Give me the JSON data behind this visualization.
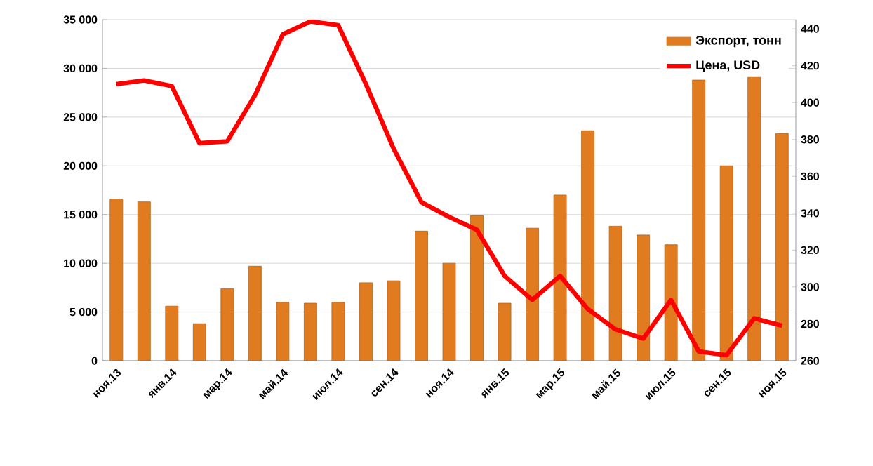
{
  "chart_data": {
    "type": "bar",
    "categories": [
      "ноя.13",
      null,
      "янв.14",
      null,
      "мар.14",
      null,
      "май.14",
      null,
      "июл.14",
      null,
      "сен.14",
      null,
      "ноя.14",
      null,
      "янв.15",
      null,
      "мар.15",
      null,
      "май.15",
      null,
      "июл.15",
      null,
      "сен.15",
      null,
      "ноя.15"
    ],
    "series": [
      {
        "name": "Экспорт, тонн",
        "color": "#e07b20",
        "values": [
          16600,
          16300,
          5600,
          3800,
          7400,
          9700,
          6000,
          5900,
          6000,
          8000,
          8200,
          13300,
          10000,
          14900,
          5900,
          13600,
          17000,
          23600,
          13800,
          12900,
          11900,
          28800,
          20000,
          29600,
          23300
        ]
      },
      {
        "name": "Цена, USD",
        "type": "line",
        "axis": "y2",
        "color": "#ff0000",
        "values": [
          410,
          412,
          409,
          378,
          379,
          404,
          437,
          444,
          442,
          410,
          375,
          346,
          338,
          331,
          306,
          293,
          306,
          288,
          277,
          272,
          293,
          265,
          263,
          283,
          279
        ]
      }
    ],
    "ylim": [
      0,
      35000
    ],
    "yticks": [
      {
        "value": 0,
        "label": "0"
      },
      {
        "value": 5000,
        "label": "5 000"
      },
      {
        "value": 10000,
        "label": "10 000"
      },
      {
        "value": 15000,
        "label": "15 000"
      },
      {
        "value": 20000,
        "label": "20 000"
      },
      {
        "value": 25000,
        "label": "25 000"
      },
      {
        "value": 30000,
        "label": "30 000"
      },
      {
        "value": 35000,
        "label": "35 000"
      }
    ],
    "y2lim": [
      260,
      445
    ],
    "y2ticks": [
      260,
      280,
      300,
      320,
      340,
      360,
      380,
      400,
      420,
      440
    ],
    "grid": "y",
    "legend": "top right"
  }
}
